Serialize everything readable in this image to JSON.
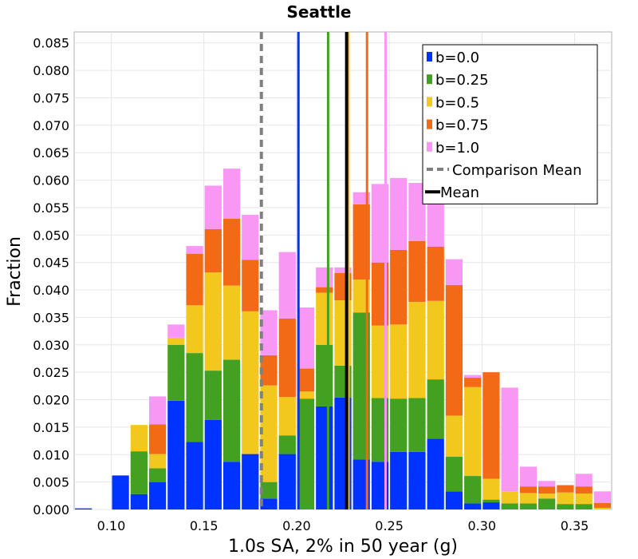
{
  "chart_data": {
    "type": "bar",
    "stacked": true,
    "title": "Seattle",
    "xlabel": "1.0s SA, 2% in 50 year (g)",
    "ylabel": "Fraction",
    "xlim": [
      0.08,
      0.37
    ],
    "ylim": [
      0,
      0.087
    ],
    "bin_width": 0.01,
    "grid": true,
    "legend_position": "top-right",
    "x_ticks": [
      "0.10",
      "0.15",
      "0.20",
      "0.25",
      "0.30",
      "0.35"
    ],
    "y_ticks": [
      "0.000",
      "0.005",
      "0.010",
      "0.015",
      "0.020",
      "0.025",
      "0.030",
      "0.035",
      "0.040",
      "0.045",
      "0.050",
      "0.055",
      "0.060",
      "0.065",
      "0.070",
      "0.075",
      "0.080",
      "0.085"
    ],
    "x": [
      0.085,
      0.095,
      0.105,
      0.115,
      0.125,
      0.135,
      0.145,
      0.155,
      0.165,
      0.175,
      0.185,
      0.195,
      0.205,
      0.215,
      0.225,
      0.235,
      0.245,
      0.255,
      0.265,
      0.275,
      0.285,
      0.295,
      0.305,
      0.315,
      0.325,
      0.335,
      0.345,
      0.355,
      0.365
    ],
    "series": [
      {
        "name": "b=0.0",
        "color": "#0033ff",
        "values": [
          0.0002,
          0,
          0.0062,
          0.0028,
          0.005,
          0.0198,
          0.0123,
          0.0163,
          0.0087,
          0.0101,
          0.002,
          0.0101,
          0,
          0.0188,
          0.0204,
          0.0091,
          0.0087,
          0.0105,
          0.0105,
          0.0129,
          0.0033,
          0.0011,
          0.0013,
          0,
          0,
          0,
          0,
          0,
          0
        ]
      },
      {
        "name": "b=0.25",
        "color": "#44a020",
        "values": [
          0,
          0,
          0,
          0.0078,
          0.0025,
          0.0102,
          0.0162,
          0.009,
          0.0186,
          0,
          0.003,
          0.0034,
          0.0202,
          0.0112,
          0.0058,
          0.0268,
          0.0116,
          0.0097,
          0.0098,
          0.0108,
          0.0063,
          0.005,
          0.0005,
          0.0011,
          0.0011,
          0.002,
          0.001,
          0.001,
          0
        ]
      },
      {
        "name": "b=0.5",
        "color": "#f2c81e",
        "values": [
          0,
          0,
          0,
          0.0048,
          0.0026,
          0.0013,
          0.0087,
          0.0179,
          0.0135,
          0.026,
          0.0176,
          0.007,
          0.0013,
          0.0095,
          0.0119,
          0.006,
          0.0132,
          0.0135,
          0.0175,
          0.0143,
          0.0075,
          0.0162,
          0.0038,
          0.0022,
          0.0019,
          0.0009,
          0.0021,
          0.0019,
          0.0003
        ]
      },
      {
        "name": "b=0.75",
        "color": "#f26a16",
        "values": [
          0,
          0,
          0,
          0,
          0.0054,
          0,
          0.0094,
          0.0079,
          0.0122,
          0.0094,
          0.0055,
          0.0143,
          0.0042,
          0.001,
          0.005,
          0.0137,
          0.0115,
          0.0136,
          0.0111,
          0.0099,
          0.0238,
          0.0017,
          0.0194,
          0,
          0.0012,
          0.0013,
          0.0013,
          0.0013,
          0.0009
        ]
      },
      {
        "name": "b=1.0",
        "color": "#f997f5",
        "values": [
          0,
          0,
          0,
          0,
          0.0051,
          0.0024,
          0.0014,
          0.0079,
          0.0091,
          0.0082,
          0.0082,
          0.0121,
          0.0111,
          0.0036,
          0.001,
          0.0022,
          0.0143,
          0.0131,
          0.0106,
          0.0133,
          0.0047,
          0.0005,
          0,
          0.0189,
          0.0036,
          0.001,
          0.0001,
          0.0023,
          0.0021
        ]
      }
    ],
    "vertical_lines": [
      {
        "name": "b=0.0 mean",
        "x": 0.201,
        "color": "#0033ff",
        "style": "solid"
      },
      {
        "name": "b=0.25 mean",
        "x": 0.217,
        "color": "#44a020",
        "style": "solid"
      },
      {
        "name": "b=0.5 mean",
        "x": 0.228,
        "color": "#f2c81e",
        "style": "solid"
      },
      {
        "name": "b=0.75 mean",
        "x": 0.238,
        "color": "#f26a16",
        "style": "solid"
      },
      {
        "name": "b=1.0 mean",
        "x": 0.248,
        "color": "#f997f5",
        "style": "solid"
      },
      {
        "name": "Comparison Mean",
        "x": 0.181,
        "color": "#808080",
        "style": "dashed"
      },
      {
        "name": "Mean",
        "x": 0.227,
        "color": "#000000",
        "style": "solid"
      }
    ],
    "legend": [
      {
        "label": "b=0.0",
        "color": "#0033ff",
        "kind": "box"
      },
      {
        "label": "b=0.25",
        "color": "#44a020",
        "kind": "box"
      },
      {
        "label": "b=0.5",
        "color": "#f2c81e",
        "kind": "box"
      },
      {
        "label": "b=0.75",
        "color": "#f26a16",
        "kind": "box"
      },
      {
        "label": "b=1.0",
        "color": "#f997f5",
        "kind": "box"
      },
      {
        "label": "Comparison Mean",
        "color": "#808080",
        "kind": "dashed"
      },
      {
        "label": "Mean",
        "color": "#000000",
        "kind": "line"
      }
    ]
  }
}
